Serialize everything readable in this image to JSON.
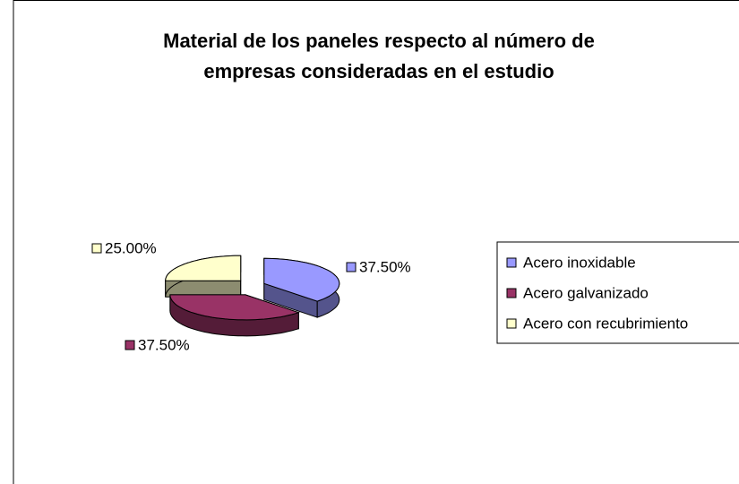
{
  "chart_data": {
    "type": "pie",
    "title": [
      "Material de los paneles respecto al número de",
      "empresas consideradas en el estudio"
    ],
    "categories": [
      "Acero inoxidable",
      "Acero galvanizado",
      "Acero con recubrimiento"
    ],
    "values": [
      37.5,
      37.5,
      25
    ],
    "value_labels": [
      "37.50%",
      "37.50%",
      "25.00%"
    ],
    "colors": [
      "#9999FF",
      "#993366",
      "#FFFFCC"
    ],
    "legend": "right"
  }
}
